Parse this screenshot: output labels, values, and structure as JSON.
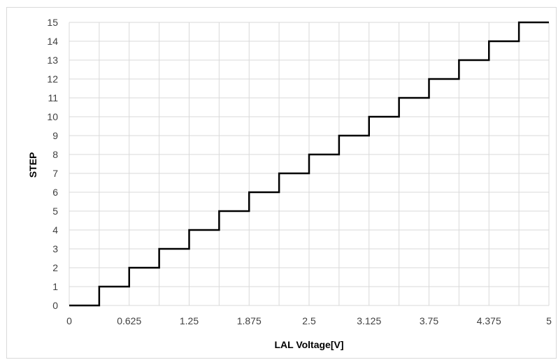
{
  "chart_data": {
    "type": "line",
    "style": "step",
    "title": "",
    "xlabel": "LAL Voltage[V]",
    "ylabel": "STEP",
    "xlim": [
      0,
      5
    ],
    "ylim": [
      0,
      15
    ],
    "x_ticks": [
      "0",
      "0.625",
      "1.25",
      "1.875",
      "2.5",
      "3.125",
      "3.75",
      "4.375",
      "5"
    ],
    "y_ticks": [
      "0",
      "1",
      "2",
      "3",
      "4",
      "5",
      "6",
      "7",
      "8",
      "9",
      "10",
      "11",
      "12",
      "13",
      "14",
      "15"
    ],
    "grid": true,
    "legend": "none",
    "series": [
      {
        "color": "#000000",
        "thresholds": [
          0.3125,
          0.625,
          0.9375,
          1.25,
          1.5625,
          1.875,
          2.1875,
          2.5,
          2.8125,
          3.125,
          3.4375,
          3.75,
          4.0625,
          4.375,
          4.6875
        ],
        "values": [
          0,
          1,
          2,
          3,
          4,
          5,
          6,
          7,
          8,
          9,
          10,
          11,
          12,
          13,
          14,
          15
        ]
      }
    ]
  }
}
